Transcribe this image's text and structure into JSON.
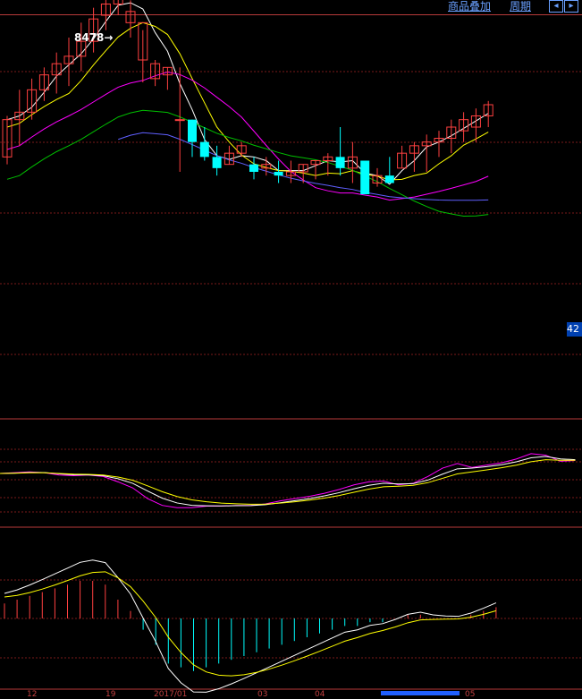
{
  "header": {
    "overlay_label": "商品叠加",
    "period_label": "周期",
    "nav_left_icon": "arrow-left-icon",
    "nav_right_icon": "arrow-right-icon"
  },
  "price_axis_label": "42",
  "peak_label": "8478",
  "date_labels": [
    "12",
    "19",
    "2017/01",
    "03",
    "04",
    "05"
  ],
  "colors": {
    "up": "#ff4040",
    "down": "#00ffff",
    "ma5": "#ffffff",
    "ma10": "#ffff00",
    "ma20": "#ff00ff",
    "ma30": "#00c000",
    "ma60": "#6060ff",
    "grid": "#7a1a1a",
    "signal": "#ffff00",
    "diff": "#ffffff"
  },
  "chart_data": [
    {
      "type": "candlestick",
      "title": "",
      "ylim": [
        -8,
        100
      ],
      "grid": true,
      "candles": [
        [
          73,
          60,
          62,
          72
        ],
        [
          80,
          65,
          72,
          74
        ],
        [
          83,
          72,
          74,
          80
        ],
        [
          86,
          77,
          80,
          84
        ],
        [
          90,
          79,
          84,
          87
        ],
        [
          94,
          81,
          87,
          89
        ],
        [
          98,
          85,
          89,
          93
        ],
        [
          102,
          90,
          93,
          99
        ],
        [
          106,
          96,
          100,
          103
        ],
        [
          108,
          100,
          103,
          106
        ],
        [
          104,
          94,
          98,
          101
        ],
        [
          96,
          82,
          88,
          98
        ],
        [
          88,
          81,
          83,
          87
        ],
        [
          86,
          80,
          84,
          86
        ],
        [
          86,
          58,
          72,
          72
        ],
        [
          72,
          62,
          72,
          66
        ],
        [
          70,
          61,
          66,
          62
        ],
        [
          65,
          57,
          62,
          59
        ],
        [
          65,
          60,
          60,
          63
        ],
        [
          66,
          62,
          63,
          65
        ],
        [
          62,
          56,
          60,
          58
        ],
        [
          62,
          57,
          59,
          60
        ],
        [
          61,
          55,
          58,
          57
        ],
        [
          61,
          55,
          57,
          58
        ],
        [
          60,
          55,
          58,
          60
        ],
        [
          61,
          56,
          60,
          61
        ],
        [
          63,
          57,
          61,
          62
        ],
        [
          70,
          57,
          62,
          59
        ],
        [
          66,
          55,
          59,
          62
        ],
        [
          60,
          52,
          61,
          52
        ],
        [
          59,
          54,
          55,
          57
        ],
        [
          62,
          55,
          57,
          55
        ],
        [
          65,
          59,
          59,
          63
        ],
        [
          66,
          58,
          63,
          65
        ],
        [
          68,
          58,
          65,
          66
        ],
        [
          69,
          62,
          66,
          67
        ],
        [
          72,
          63,
          67,
          70
        ],
        [
          74,
          66,
          69,
          72
        ],
        [
          75,
          66,
          70,
          73
        ],
        [
          77,
          70,
          73,
          76
        ]
      ]
    },
    {
      "type": "line",
      "title": "",
      "series": [
        {
          "values": [
            60,
            61,
            62,
            61,
            58,
            57,
            58,
            56,
            49,
            41,
            27,
            18,
            15,
            15,
            17,
            17,
            18,
            18,
            20,
            24,
            27,
            30,
            34,
            39,
            45,
            49,
            50,
            45,
            47,
            56,
            67,
            73,
            68,
            71,
            74,
            79,
            86,
            84,
            76,
            77
          ]
        }
      ]
    },
    {
      "type": "bar",
      "title": "",
      "values": [
        4,
        5,
        6,
        7,
        8,
        9,
        10,
        10,
        9,
        5,
        2,
        -3,
        -7,
        -12,
        -13,
        -14,
        -13,
        -12,
        -11,
        -10,
        -9,
        -8,
        -7,
        -6,
        -5,
        -4,
        -3,
        -2,
        -2,
        -1,
        -1,
        0,
        1,
        1,
        0,
        0,
        0,
        1,
        2,
        3
      ]
    }
  ]
}
